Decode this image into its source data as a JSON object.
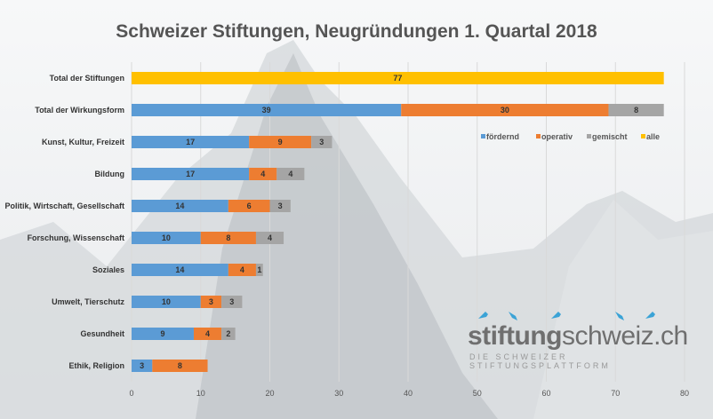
{
  "chart_data": {
    "type": "bar",
    "orientation": "horizontal",
    "stacked": true,
    "title": "Schweizer Stiftungen, Neugründungen 1. Quartal 2018",
    "categories": [
      "Total der Stiftungen",
      "Total der Wirkungsform",
      "Kunst, Kultur, Freizeit",
      "Bildung",
      "Politik, Wirtschaft, Gesellschaft",
      "Forschung, Wissenschaft",
      "Soziales",
      "Umwelt, Tierschutz",
      "Gesundheit",
      "Ethik, Religion"
    ],
    "series": [
      {
        "name": "fördernd",
        "color": "#5b9bd5",
        "values": [
          null,
          39,
          17,
          17,
          14,
          10,
          14,
          10,
          9,
          3
        ]
      },
      {
        "name": "operativ",
        "color": "#ed7d31",
        "values": [
          null,
          30,
          9,
          4,
          6,
          8,
          4,
          3,
          4,
          8
        ]
      },
      {
        "name": "gemischt",
        "color": "#a5a5a5",
        "values": [
          null,
          8,
          3,
          4,
          3,
          4,
          1,
          3,
          2,
          null
        ]
      },
      {
        "name": "alle",
        "color": "#ffc000",
        "values": [
          77,
          null,
          null,
          null,
          null,
          null,
          null,
          null,
          null,
          null
        ]
      }
    ],
    "xlim": [
      0,
      80
    ],
    "xticks": [
      0,
      10,
      20,
      30,
      40,
      50,
      60,
      70,
      80
    ],
    "grid": true,
    "legend": "right, inside plot"
  },
  "logo": {
    "name": "stiftungschweiz.ch",
    "bold": "stiftung",
    "rest": "schweiz.ch",
    "tagline": "DIE SCHWEIZER STIFTUNGSPLATTFORM",
    "color": "#3ba3d6"
  }
}
